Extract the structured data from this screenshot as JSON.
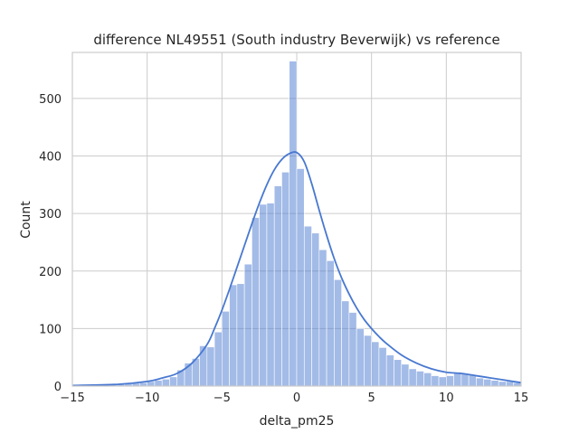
{
  "chart_data": {
    "type": "bar",
    "title": "difference NL49551 (South industry Beverwijk) vs reference",
    "xlabel": "delta_pm25",
    "ylabel": "Count",
    "xlim": [
      -15,
      15
    ],
    "ylim": [
      0,
      580
    ],
    "xticks": [
      -15,
      -10,
      -5,
      0,
      5,
      10,
      15
    ],
    "yticks": [
      0,
      100,
      200,
      300,
      400,
      500
    ],
    "grid": true,
    "legend": "none",
    "color": "#4878d0",
    "bin_width": 0.5,
    "bin_start": -15,
    "counts": [
      1,
      2,
      2,
      2,
      3,
      3,
      3,
      4,
      5,
      6,
      8,
      10,
      12,
      16,
      28,
      40,
      48,
      70,
      68,
      94,
      130,
      176,
      178,
      212,
      293,
      316,
      318,
      348,
      372,
      565,
      378,
      278,
      266,
      237,
      218,
      185,
      148,
      128,
      100,
      88,
      77,
      67,
      54,
      46,
      38,
      30,
      26,
      23,
      18,
      16,
      18,
      24,
      22,
      20,
      14,
      12,
      10,
      8,
      8,
      6
    ],
    "kde_x": [
      -15,
      -12,
      -10,
      -9,
      -8,
      -7,
      -6,
      -5.5,
      -5,
      -4.5,
      -4,
      -3.5,
      -3,
      -2.5,
      -2,
      -1.5,
      -1,
      -0.5,
      0,
      0.5,
      1,
      1.5,
      2,
      2.5,
      3,
      3.5,
      4,
      4.5,
      5,
      5.5,
      6,
      7,
      8,
      9,
      10,
      11,
      12,
      13,
      14,
      15
    ],
    "kde_y": [
      1,
      3,
      8,
      14,
      22,
      40,
      72,
      100,
      132,
      168,
      206,
      244,
      282,
      318,
      350,
      376,
      394,
      404,
      406,
      390,
      352,
      306,
      262,
      222,
      188,
      160,
      136,
      116,
      100,
      86,
      74,
      54,
      40,
      30,
      24,
      22,
      18,
      14,
      10,
      6
    ]
  }
}
